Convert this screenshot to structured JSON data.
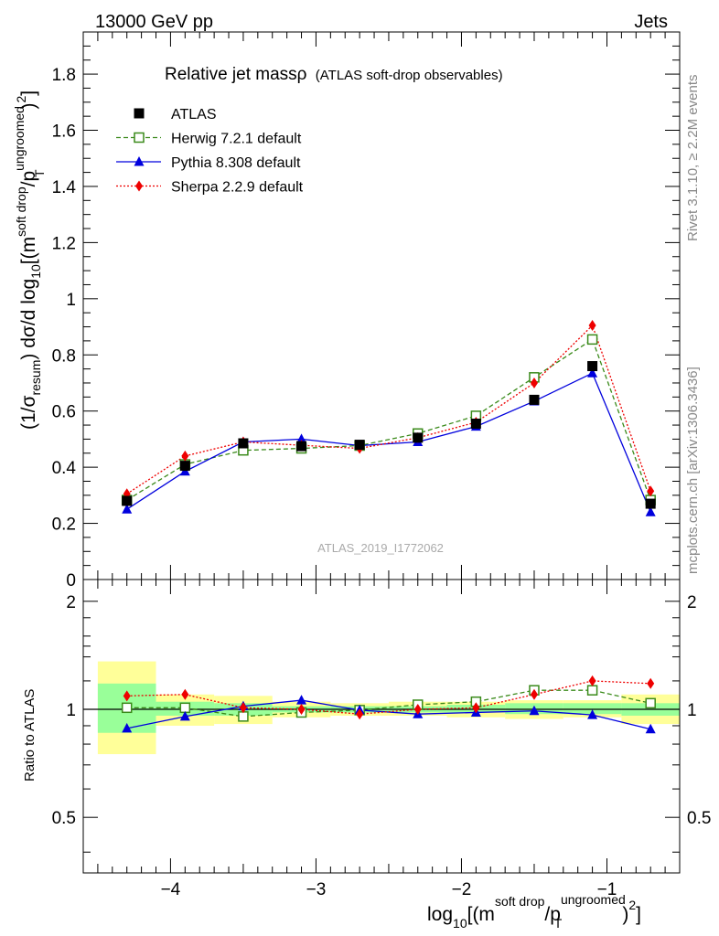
{
  "header": {
    "left": "13000 GeV pp",
    "right": "Jets"
  },
  "side_labels": {
    "rivet": "Rivet 3.1.10, ≥ 2.2M events",
    "mcplots": "mcplots.cern.ch [arXiv:1306.3436]"
  },
  "chart_data": {
    "type": "scatter",
    "title_main": "Relative jet massρ",
    "title_sub": "(ATLAS soft-drop observables)",
    "watermark": "ATLAS_2019_I1772062",
    "ylabel_pre": "(1/σ",
    "ylabel_sub1": "resum",
    "ylabel_mid": ") dσ/d log",
    "ylabel_sub2": "10",
    "ylabel_post": "[(m",
    "ylabel_sup1": "soft drop",
    "ylabel_mid2": "/p",
    "ylabel_sup2": "ungroomed",
    "ylabel_sub3": "T",
    "ylabel_end": ")",
    "ylabel_sup3": "2",
    "ylabel_close": "]",
    "xlabel_pre": "log",
    "xlabel_sub": "10",
    "xlabel_mid": "[(m",
    "xlabel_sup1": "soft drop",
    "xlabel_mid2": "/p",
    "xlabel_sup2": "ungroomed",
    "xlabel_sub2": "T",
    "xlabel_end": ")",
    "xlabel_sup3": "2",
    "xlabel_close": "]",
    "ratio_ylabel": "Ratio to ATLAS",
    "xlim": [
      -4.6,
      -0.5
    ],
    "ylim": [
      0,
      1.95
    ],
    "ratio_ylim": [
      0.35,
      2.3
    ],
    "x_ticks": [
      -4,
      -3,
      -2,
      -1
    ],
    "x_tick_labels": [
      "−4",
      "−3",
      "−2",
      "−1"
    ],
    "y_ticks": [
      0,
      0.2,
      0.4,
      0.6,
      0.8,
      1,
      1.2,
      1.4,
      1.6,
      1.8
    ],
    "y_tick_labels": [
      "0",
      "0.2",
      "0.4",
      "0.6",
      "0.8",
      "1",
      "1.2",
      "1.4",
      "1.6",
      "1.8"
    ],
    "ratio_y_ticks": [
      0.5,
      1,
      2
    ],
    "ratio_y_tick_labels": [
      "0.5",
      "1",
      "2"
    ],
    "x": [
      -4.3,
      -3.9,
      -3.5,
      -3.1,
      -2.7,
      -2.3,
      -1.9,
      -1.5,
      -1.1,
      -0.7
    ],
    "bin_edges": [
      -4.5,
      -4.1,
      -3.7,
      -3.3,
      -2.9,
      -2.5,
      -2.1,
      -1.7,
      -1.3,
      -0.9,
      -0.5
    ],
    "series": [
      {
        "name": "ATLAS",
        "color": "#000000",
        "marker": "square",
        "values": [
          0.28,
          0.405,
          0.485,
          0.475,
          0.48,
          0.505,
          0.555,
          0.64,
          0.76,
          0.27
        ]
      },
      {
        "name": "Herwig 7.2.1 default",
        "color": "#3a8a1a",
        "marker": "open-square",
        "dash": "dashed",
        "values": [
          0.283,
          0.41,
          0.46,
          0.467,
          0.477,
          0.52,
          0.583,
          0.72,
          0.855,
          0.283
        ]
      },
      {
        "name": "Pythia 8.308 default",
        "color": "#0000dd",
        "marker": "triangle",
        "dash": "solid",
        "values": [
          0.25,
          0.385,
          0.49,
          0.5,
          0.477,
          0.49,
          0.545,
          0.635,
          0.735,
          0.24
        ]
      },
      {
        "name": "Sherpa 2.2.9 default",
        "color": "#ee0000",
        "marker": "diamond",
        "dash": "dotted",
        "values": [
          0.305,
          0.44,
          0.49,
          0.478,
          0.467,
          0.505,
          0.56,
          0.7,
          0.905,
          0.315
        ]
      }
    ],
    "ratio_series": [
      {
        "name": "Herwig 7.2.1 default",
        "values": [
          1.01,
          1.01,
          0.955,
          0.98,
          0.995,
          1.03,
          1.05,
          1.13,
          1.13,
          1.04
        ]
      },
      {
        "name": "Pythia 8.308 default",
        "values": [
          0.885,
          0.955,
          1.02,
          1.06,
          0.995,
          0.97,
          0.98,
          0.99,
          0.965,
          0.88
        ]
      },
      {
        "name": "Sherpa 2.2.9 default",
        "values": [
          1.09,
          1.1,
          1.01,
          1.0,
          0.97,
          1.0,
          1.01,
          1.1,
          1.2,
          1.18
        ]
      }
    ],
    "band_stat": [
      [
        0.86,
        1.18
      ],
      [
        0.96,
        1.05
      ],
      [
        0.96,
        1.04
      ],
      [
        0.98,
        1.02
      ],
      [
        0.98,
        1.02
      ],
      [
        0.98,
        1.02
      ],
      [
        0.98,
        1.03
      ],
      [
        0.97,
        1.04
      ],
      [
        0.97,
        1.04
      ],
      [
        0.96,
        1.04
      ]
    ],
    "band_total": [
      [
        0.75,
        1.36
      ],
      [
        0.9,
        1.1
      ],
      [
        0.91,
        1.09
      ],
      [
        0.95,
        1.05
      ],
      [
        0.96,
        1.04
      ],
      [
        0.96,
        1.05
      ],
      [
        0.95,
        1.05
      ],
      [
        0.94,
        1.06
      ],
      [
        0.95,
        1.06
      ],
      [
        0.91,
        1.1
      ]
    ],
    "band_colors": {
      "total": "#ffff99",
      "stat": "#99ff99"
    }
  }
}
